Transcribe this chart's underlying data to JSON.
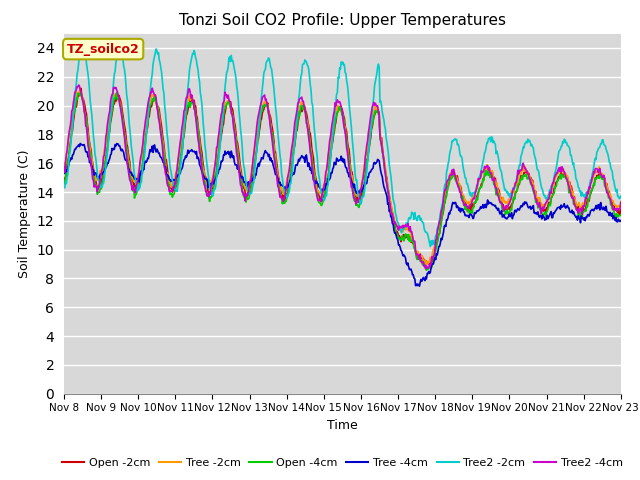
{
  "title": "Tonzi Soil CO2 Profile: Upper Temperatures",
  "xlabel": "Time",
  "ylabel": "Soil Temperature (C)",
  "ylim": [
    0,
    25
  ],
  "yticks": [
    0,
    2,
    4,
    6,
    8,
    10,
    12,
    14,
    16,
    18,
    20,
    22,
    24
  ],
  "bg_color": "#d8d8d8",
  "series_colors": [
    "#cc0000",
    "#ff9900",
    "#00cc00",
    "#0000cc",
    "#00cccc",
    "#cc00cc"
  ],
  "series_labels": [
    "Open -2cm",
    "Tree -2cm",
    "Open -4cm",
    "Tree -4cm",
    "Tree2 -2cm",
    "Tree2 -4cm"
  ],
  "annotation_text": "TZ_soilco2",
  "annotation_color": "#cc0000",
  "annotation_bg": "#ffffcc",
  "annotation_border": "#aaaa00",
  "n_days": 15,
  "start_day": 8,
  "points_per_day": 48
}
